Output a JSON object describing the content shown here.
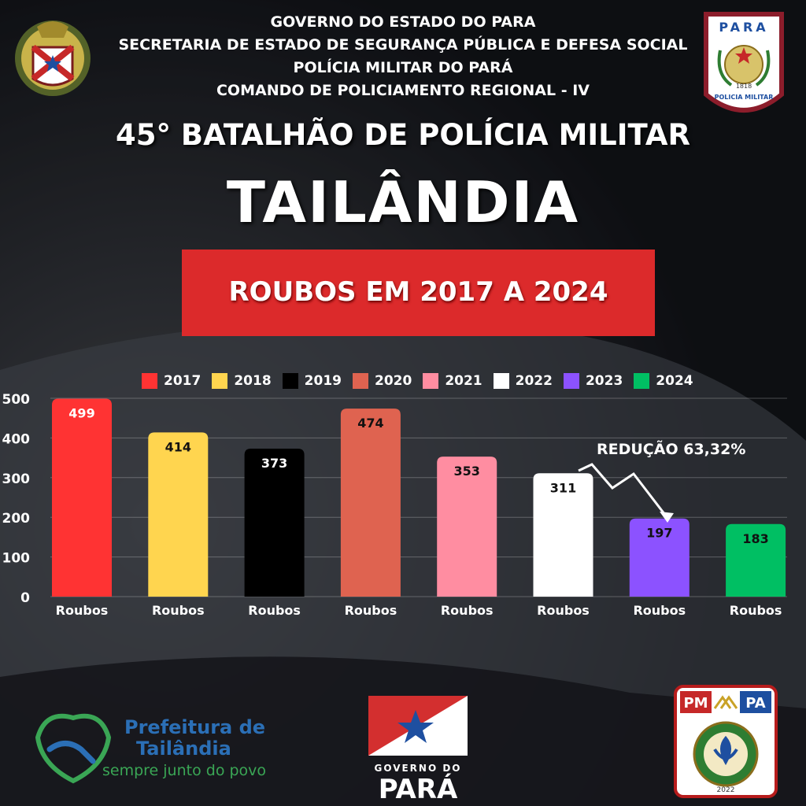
{
  "header": {
    "lines": [
      "GOVERNO DO ESTADO DO PARA",
      "SECRETARIA DE ESTADO DE SEGURANÇA PÚBLICA E DEFESA SOCIAL",
      "POLÍCIA MILITAR DO PARÁ",
      "COMANDO DE POLICIAMENTO REGIONAL - IV"
    ],
    "battalion": "45° BATALHÃO DE POLÍCIA MILITAR",
    "city": "TAILÂNDIA",
    "banner": "ROUBOS EM 2017 A 2024"
  },
  "chart_data": {
    "type": "bar",
    "categories": [
      "Roubos",
      "Roubos",
      "Roubos",
      "Roubos",
      "Roubos",
      "Roubos",
      "Roubos",
      "Roubos"
    ],
    "series": [
      {
        "name": "2017",
        "value": 499,
        "color": "#ff3333"
      },
      {
        "name": "2018",
        "value": 414,
        "color": "#ffd54f"
      },
      {
        "name": "2019",
        "value": 373,
        "color": "#000000"
      },
      {
        "name": "2020",
        "value": 474,
        "color": "#df6350"
      },
      {
        "name": "2021",
        "value": 353,
        "color": "#ff8da1"
      },
      {
        "name": "2022",
        "value": 311,
        "color": "#ffffff"
      },
      {
        "name": "2023",
        "value": 197,
        "color": "#8c52ff"
      },
      {
        "name": "2024",
        "value": 183,
        "color": "#00bf63"
      }
    ],
    "y_ticks": [
      0,
      100,
      200,
      300,
      400,
      500
    ],
    "ylim": [
      0,
      500
    ],
    "grid": true,
    "legend": "top",
    "annotation": "REDUÇÃO 63,32%"
  },
  "logos": {
    "pa_shield_label": "PARA",
    "pa_shield_year": "1818",
    "pa_shield_banner": "POLICIA MILITAR",
    "prefeitura_line1": "Prefeitura de",
    "prefeitura_line2": "Tailândia",
    "prefeitura_line3": "sempre junto do povo",
    "governo_line1": "GOVERNO DO",
    "governo_line2": "PARÁ",
    "pmpa_left": "PM",
    "pmpa_right": "PA",
    "pmpa_year": "2022"
  },
  "colors": {
    "banner": "#dc2a2b",
    "accent_blue": "#2b6fb6",
    "accent_green": "#3aa655"
  }
}
